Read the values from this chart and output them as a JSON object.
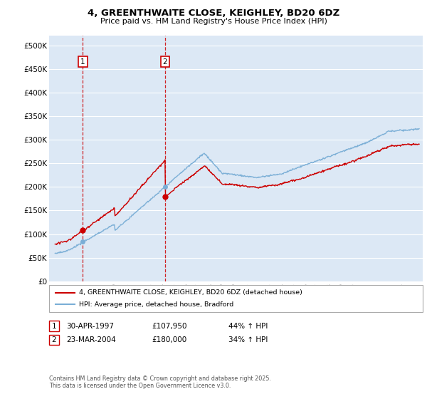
{
  "title": "4, GREENTHWAITE CLOSE, KEIGHLEY, BD20 6DZ",
  "subtitle": "Price paid vs. HM Land Registry's House Price Index (HPI)",
  "red_label": "4, GREENTHWAITE CLOSE, KEIGHLEY, BD20 6DZ (detached house)",
  "blue_label": "HPI: Average price, detached house, Bradford",
  "transactions": [
    {
      "num": 1,
      "date": "30-APR-1997",
      "price": 107950,
      "hpi_change": "44% ↑ HPI",
      "x_year": 1997.33
    },
    {
      "num": 2,
      "date": "23-MAR-2004",
      "price": 180000,
      "hpi_change": "34% ↑ HPI",
      "x_year": 2004.22
    }
  ],
  "ylim": [
    0,
    520000
  ],
  "xlim_start": 1994.5,
  "xlim_end": 2025.8,
  "yticks": [
    0,
    50000,
    100000,
    150000,
    200000,
    250000,
    300000,
    350000,
    400000,
    450000,
    500000
  ],
  "ytick_labels": [
    "£0",
    "£50K",
    "£100K",
    "£150K",
    "£200K",
    "£250K",
    "£300K",
    "£350K",
    "£400K",
    "£450K",
    "£500K"
  ],
  "red_color": "#cc0000",
  "blue_color": "#7aaed6",
  "bg_color": "#dce8f5",
  "grid_color": "#ffffff",
  "footer": "Contains HM Land Registry data © Crown copyright and database right 2025.\nThis data is licensed under the Open Government Licence v3.0."
}
